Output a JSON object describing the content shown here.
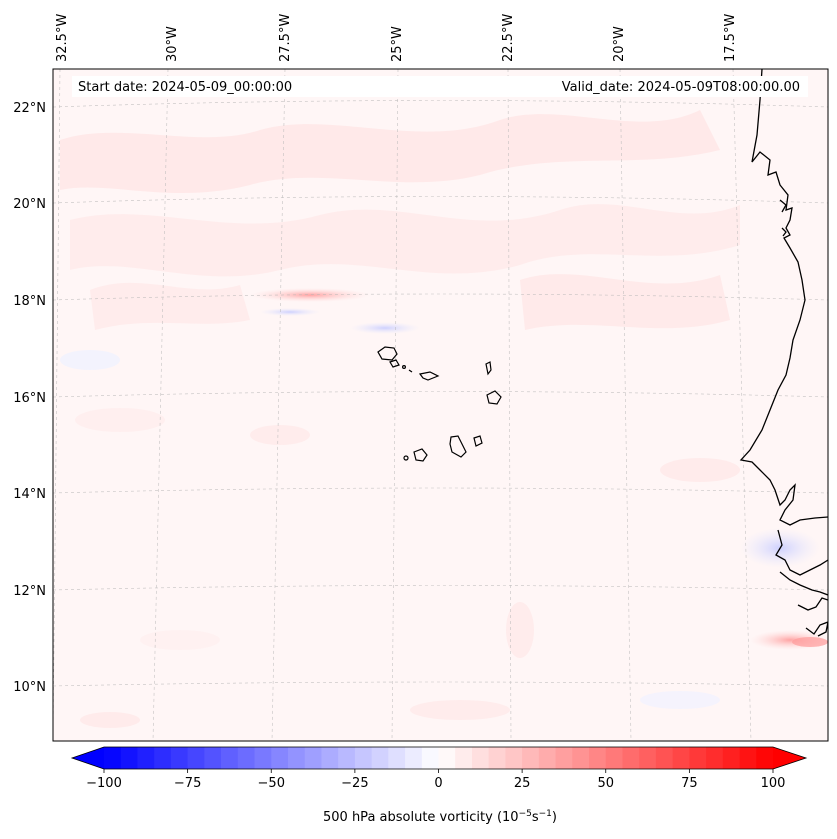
{
  "map": {
    "start_date": "Start date: 2024-05-09_00:00:00",
    "valid_date": "Valid_date: 2024-05-09T08:00:00.00",
    "longitude_labels": [
      "32.5°W",
      "30°W",
      "27.5°W",
      "25°W",
      "22.5°W",
      "20°W",
      "17.5°W"
    ],
    "latitude_labels": [
      "22°N",
      "20°N",
      "18°N",
      "16°N",
      "14°N",
      "12°N",
      "10°N"
    ],
    "gridlines": true
  },
  "colorbar": {
    "label_prefix": "500 hPa absolute vorticity (10",
    "exp1": "−5",
    "label_mid": "s",
    "exp2": "−1",
    "label_suffix": ")",
    "ticks": [
      "−100",
      "−75",
      "−50",
      "−25",
      "0",
      "25",
      "50",
      "75",
      "100"
    ],
    "tick_values": [
      -100,
      -75,
      -50,
      -25,
      0,
      25,
      50,
      75,
      100
    ],
    "range": [
      -100,
      100
    ],
    "levels": 40,
    "low_color": "#0000ff",
    "mid_color": "#ffffff",
    "high_color": "#ff0000",
    "extend": "both"
  }
}
